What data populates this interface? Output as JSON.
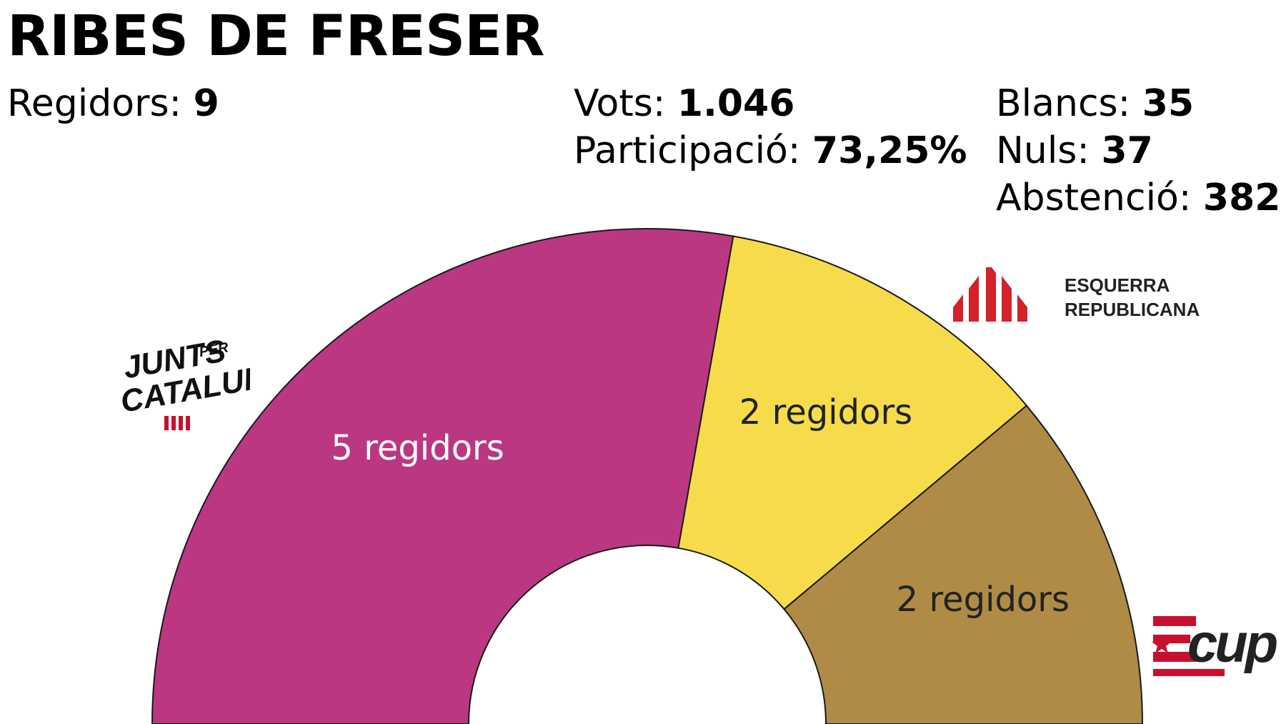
{
  "title": "RIBES DE FRESER",
  "stats": {
    "regidors": {
      "label": "Regidors:",
      "value": "9"
    },
    "vots": {
      "label": "Vots:",
      "value": "1.046"
    },
    "participacio": {
      "label": "Participació:",
      "value": "73,25%"
    },
    "blancs": {
      "label": "Blancs:",
      "value": "35"
    },
    "nuls": {
      "label": "Nuls:",
      "value": "37"
    },
    "abstencio": {
      "label": "Abstenció:",
      "value": "382"
    }
  },
  "chart_data": {
    "type": "pie",
    "subtype": "half-donut",
    "title": "RIBES DE FRESER",
    "total_seats": 9,
    "series": [
      {
        "name": "Junts per Catalunya",
        "value": 5,
        "label": "5 regidors",
        "color": "#bb3782",
        "label_color": "#ffffff",
        "logo": "junts-per-catalunya-logo"
      },
      {
        "name": "Esquerra Republicana",
        "value": 2,
        "label": "2 regidors",
        "color": "#f6dc4b",
        "label_color": "#222222",
        "logo": "esquerra-republicana-logo"
      },
      {
        "name": "CUP",
        "value": 2,
        "label": "2 regidors",
        "color": "#b08b45",
        "label_color": "#222222",
        "logo": "cup-logo"
      }
    ]
  },
  "logos": {
    "junts": {
      "line1": "JUNTS",
      "line1b": "PER",
      "line2": "CATALUNYA",
      "color": "#111111",
      "accent": "#c8102e"
    },
    "erc": {
      "line1": "ESQUERRA",
      "line2": "REPUBLICANA",
      "color": "#222222",
      "accent": "#d4212a"
    },
    "cup": {
      "text": "cup",
      "color": "#222222",
      "accent": "#c8102e"
    }
  }
}
